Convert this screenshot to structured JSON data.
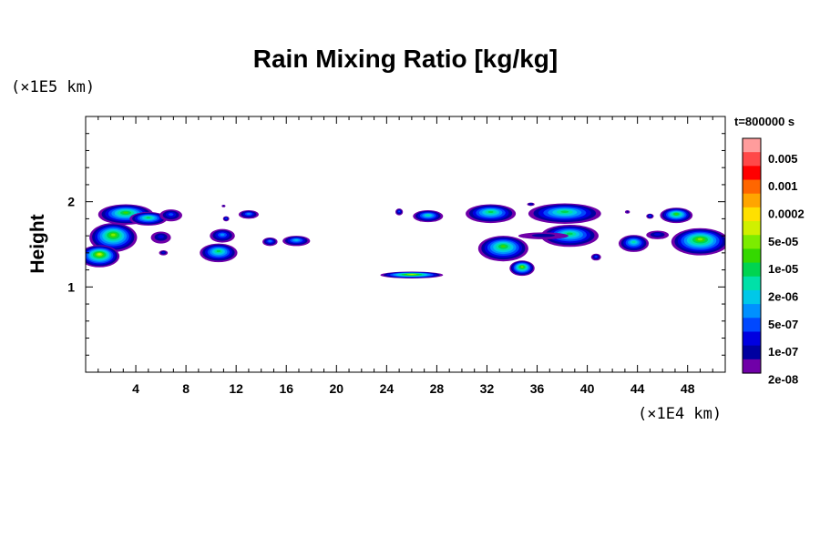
{
  "chart_data": {
    "type": "heatmap",
    "title": "Rain Mixing Ratio [kg/kg]",
    "ylabel": "Height",
    "y_scale_label": "(×1E5 km)",
    "x_scale_label": "(×1E4 km)",
    "time_label": "t=800000 s",
    "xlim": [
      0,
      51
    ],
    "ylim": [
      0,
      3
    ],
    "x_ticks": [
      4,
      8,
      12,
      16,
      20,
      24,
      28,
      32,
      36,
      40,
      44,
      48
    ],
    "x_tick_labels": [
      "4",
      "8",
      "12",
      "16",
      "20",
      "24",
      "28",
      "32",
      "36",
      "40",
      "44",
      "48"
    ],
    "y_ticks": [
      1,
      2
    ],
    "y_tick_labels": [
      "1",
      "2"
    ],
    "colorbar": {
      "labels": [
        "0.005",
        "0.001",
        "0.0002",
        "5e-05",
        "1e-05",
        "2e-06",
        "5e-07",
        "1e-07",
        "2e-08"
      ],
      "colors": [
        "#ff9c9c",
        "#ff4848",
        "#ff0000",
        "#ff6600",
        "#ffa500",
        "#ffe000",
        "#d0f000",
        "#7cec00",
        "#34d800",
        "#00d450",
        "#00e0a8",
        "#00c8e8",
        "#0090ff",
        "#0048ff",
        "#0000e0",
        "#0000a0",
        "#7000a8"
      ]
    },
    "regions": [
      {
        "x": 3.2,
        "y": 1.85,
        "rx": 2.2,
        "ry": 0.12,
        "level": 0.5
      },
      {
        "x": 5.0,
        "y": 1.8,
        "rx": 1.5,
        "ry": 0.08,
        "level": 0.45
      },
      {
        "x": 6.8,
        "y": 1.84,
        "rx": 0.9,
        "ry": 0.07,
        "level": 0.2
      },
      {
        "x": 2.2,
        "y": 1.58,
        "rx": 1.9,
        "ry": 0.17,
        "level": 0.55
      },
      {
        "x": 1.1,
        "y": 1.36,
        "rx": 1.6,
        "ry": 0.13,
        "level": 0.6
      },
      {
        "x": 6.0,
        "y": 1.58,
        "rx": 0.8,
        "ry": 0.07,
        "level": 0.15
      },
      {
        "x": 10.6,
        "y": 1.4,
        "rx": 1.5,
        "ry": 0.11,
        "level": 0.45
      },
      {
        "x": 10.9,
        "y": 1.6,
        "rx": 1.0,
        "ry": 0.08,
        "level": 0.25
      },
      {
        "x": 13.0,
        "y": 1.85,
        "rx": 0.8,
        "ry": 0.05,
        "level": 0.25
      },
      {
        "x": 14.7,
        "y": 1.53,
        "rx": 0.6,
        "ry": 0.05,
        "level": 0.25
      },
      {
        "x": 16.8,
        "y": 1.54,
        "rx": 1.1,
        "ry": 0.06,
        "level": 0.3
      },
      {
        "x": 26.0,
        "y": 1.14,
        "rx": 2.5,
        "ry": 0.04,
        "level": 0.6
      },
      {
        "x": 27.3,
        "y": 1.83,
        "rx": 1.2,
        "ry": 0.07,
        "level": 0.4
      },
      {
        "x": 32.3,
        "y": 1.86,
        "rx": 2.0,
        "ry": 0.11,
        "level": 0.45
      },
      {
        "x": 33.3,
        "y": 1.45,
        "rx": 2.0,
        "ry": 0.15,
        "level": 0.5
      },
      {
        "x": 34.8,
        "y": 1.22,
        "rx": 1.0,
        "ry": 0.09,
        "level": 0.55
      },
      {
        "x": 38.2,
        "y": 1.86,
        "rx": 2.9,
        "ry": 0.12,
        "level": 0.45
      },
      {
        "x": 38.6,
        "y": 1.6,
        "rx": 2.3,
        "ry": 0.13,
        "level": 0.45
      },
      {
        "x": 36.5,
        "y": 1.6,
        "rx": 2.0,
        "ry": 0.04,
        "level": 0.05
      },
      {
        "x": 40.7,
        "y": 1.35,
        "rx": 0.4,
        "ry": 0.04,
        "level": 0.2
      },
      {
        "x": 43.7,
        "y": 1.51,
        "rx": 1.2,
        "ry": 0.1,
        "level": 0.4
      },
      {
        "x": 47.1,
        "y": 1.84,
        "rx": 1.3,
        "ry": 0.09,
        "level": 0.5
      },
      {
        "x": 49.0,
        "y": 1.53,
        "rx": 2.3,
        "ry": 0.16,
        "level": 0.55
      },
      {
        "x": 45.6,
        "y": 1.61,
        "rx": 0.9,
        "ry": 0.05,
        "level": 0.1
      },
      {
        "x": 43.2,
        "y": 1.88,
        "rx": 0.2,
        "ry": 0.02,
        "level": 0.05
      },
      {
        "x": 25.0,
        "y": 1.88,
        "rx": 0.3,
        "ry": 0.04,
        "level": 0.2
      },
      {
        "x": 35.5,
        "y": 1.97,
        "rx": 0.3,
        "ry": 0.02,
        "level": 0.1
      },
      {
        "x": 11.0,
        "y": 1.95,
        "rx": 0.15,
        "ry": 0.015,
        "level": 0.05
      },
      {
        "x": 11.2,
        "y": 1.8,
        "rx": 0.25,
        "ry": 0.03,
        "level": 0.2
      },
      {
        "x": 6.2,
        "y": 1.4,
        "rx": 0.35,
        "ry": 0.03,
        "level": 0.1
      },
      {
        "x": 45.0,
        "y": 1.83,
        "rx": 0.3,
        "ry": 0.03,
        "level": 0.2
      }
    ]
  }
}
